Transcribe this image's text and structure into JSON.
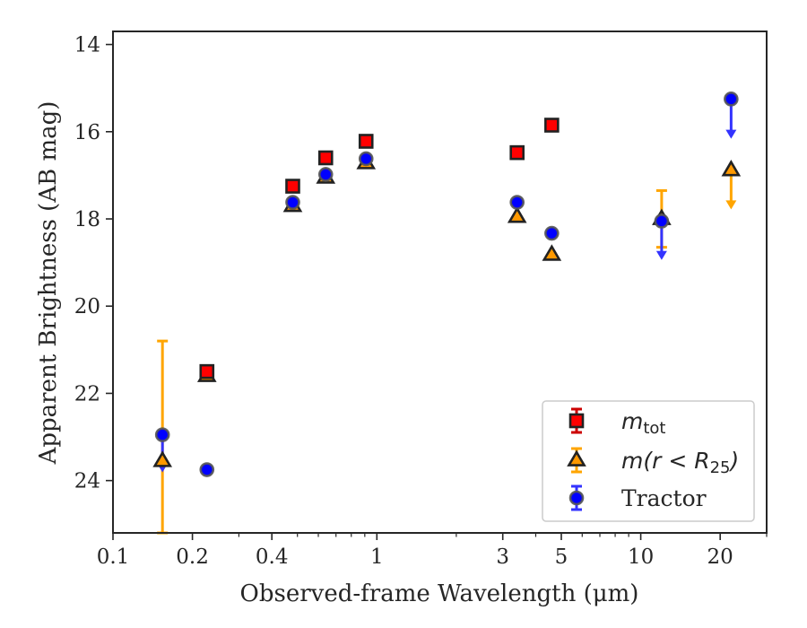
{
  "chart_data": {
    "type": "scatter",
    "xlabel": "Observed-frame Wavelength (μm)",
    "ylabel": "Apparent Brightness (AB mag)",
    "xscale": "log",
    "xlim": [
      0.1,
      30
    ],
    "ylim": [
      25.2,
      13.7
    ],
    "y_inverted": true,
    "xticks": [
      {
        "value": 0.1,
        "label": "0.1"
      },
      {
        "value": 0.2,
        "label": "0.2"
      },
      {
        "value": 0.4,
        "label": "0.4"
      },
      {
        "value": 1,
        "label": "1"
      },
      {
        "value": 3,
        "label": "3"
      },
      {
        "value": 5,
        "label": "5"
      },
      {
        "value": 10,
        "label": "10"
      },
      {
        "value": 20,
        "label": "20"
      }
    ],
    "yticks": [
      {
        "value": 14,
        "label": "14"
      },
      {
        "value": 16,
        "label": "16"
      },
      {
        "value": 18,
        "label": "18"
      },
      {
        "value": 20,
        "label": "20"
      },
      {
        "value": 22,
        "label": "22"
      },
      {
        "value": 24,
        "label": "24"
      }
    ],
    "grid": false,
    "legend_placement": "lower-right",
    "series": [
      {
        "name": "m_tot",
        "label_main": "m",
        "label_sub": "tot",
        "marker": "square",
        "color": "#ff0000",
        "errcolor": "#cc0000",
        "points": [
          {
            "x": 0.227,
            "y": 21.5
          },
          {
            "x": 0.48,
            "y": 17.25
          },
          {
            "x": 0.64,
            "y": 16.6
          },
          {
            "x": 0.91,
            "y": 16.22
          },
          {
            "x": 3.4,
            "y": 16.48
          },
          {
            "x": 4.6,
            "y": 15.85
          }
        ]
      },
      {
        "name": "m(r < R25)",
        "label_main": "m(r < R",
        "label_sub": "25",
        "label_end": ")",
        "marker": "triangle",
        "color": "#ff9900",
        "errcolor": "#ffa500",
        "points": [
          {
            "x": 0.154,
            "y": 23.55,
            "err": [
              2.75,
              2.75
            ]
          },
          {
            "x": 0.227,
            "y": 21.6
          },
          {
            "x": 0.48,
            "y": 17.7
          },
          {
            "x": 0.64,
            "y": 17.05
          },
          {
            "x": 0.91,
            "y": 16.72
          },
          {
            "x": 3.4,
            "y": 17.95
          },
          {
            "x": 4.6,
            "y": 18.82
          },
          {
            "x": 12.0,
            "y": 18.0,
            "err": [
              0.65,
              0.65
            ]
          },
          {
            "x": 22.0,
            "y": 16.88,
            "limit": 17.72
          }
        ]
      },
      {
        "name": "Tractor",
        "label_main": "Tractor",
        "marker": "circle",
        "color": "#0000ff",
        "errcolor": "#3333ff",
        "points": [
          {
            "x": 0.154,
            "y": 22.95,
            "limit": 23.75
          },
          {
            "x": 0.227,
            "y": 23.75
          },
          {
            "x": 0.48,
            "y": 17.62
          },
          {
            "x": 0.64,
            "y": 16.98
          },
          {
            "x": 0.91,
            "y": 16.62
          },
          {
            "x": 3.4,
            "y": 17.62
          },
          {
            "x": 4.6,
            "y": 18.33
          },
          {
            "x": 12.0,
            "y": 18.05,
            "limit": 18.88
          },
          {
            "x": 22.0,
            "y": 15.25,
            "limit": 16.1
          }
        ]
      }
    ]
  }
}
